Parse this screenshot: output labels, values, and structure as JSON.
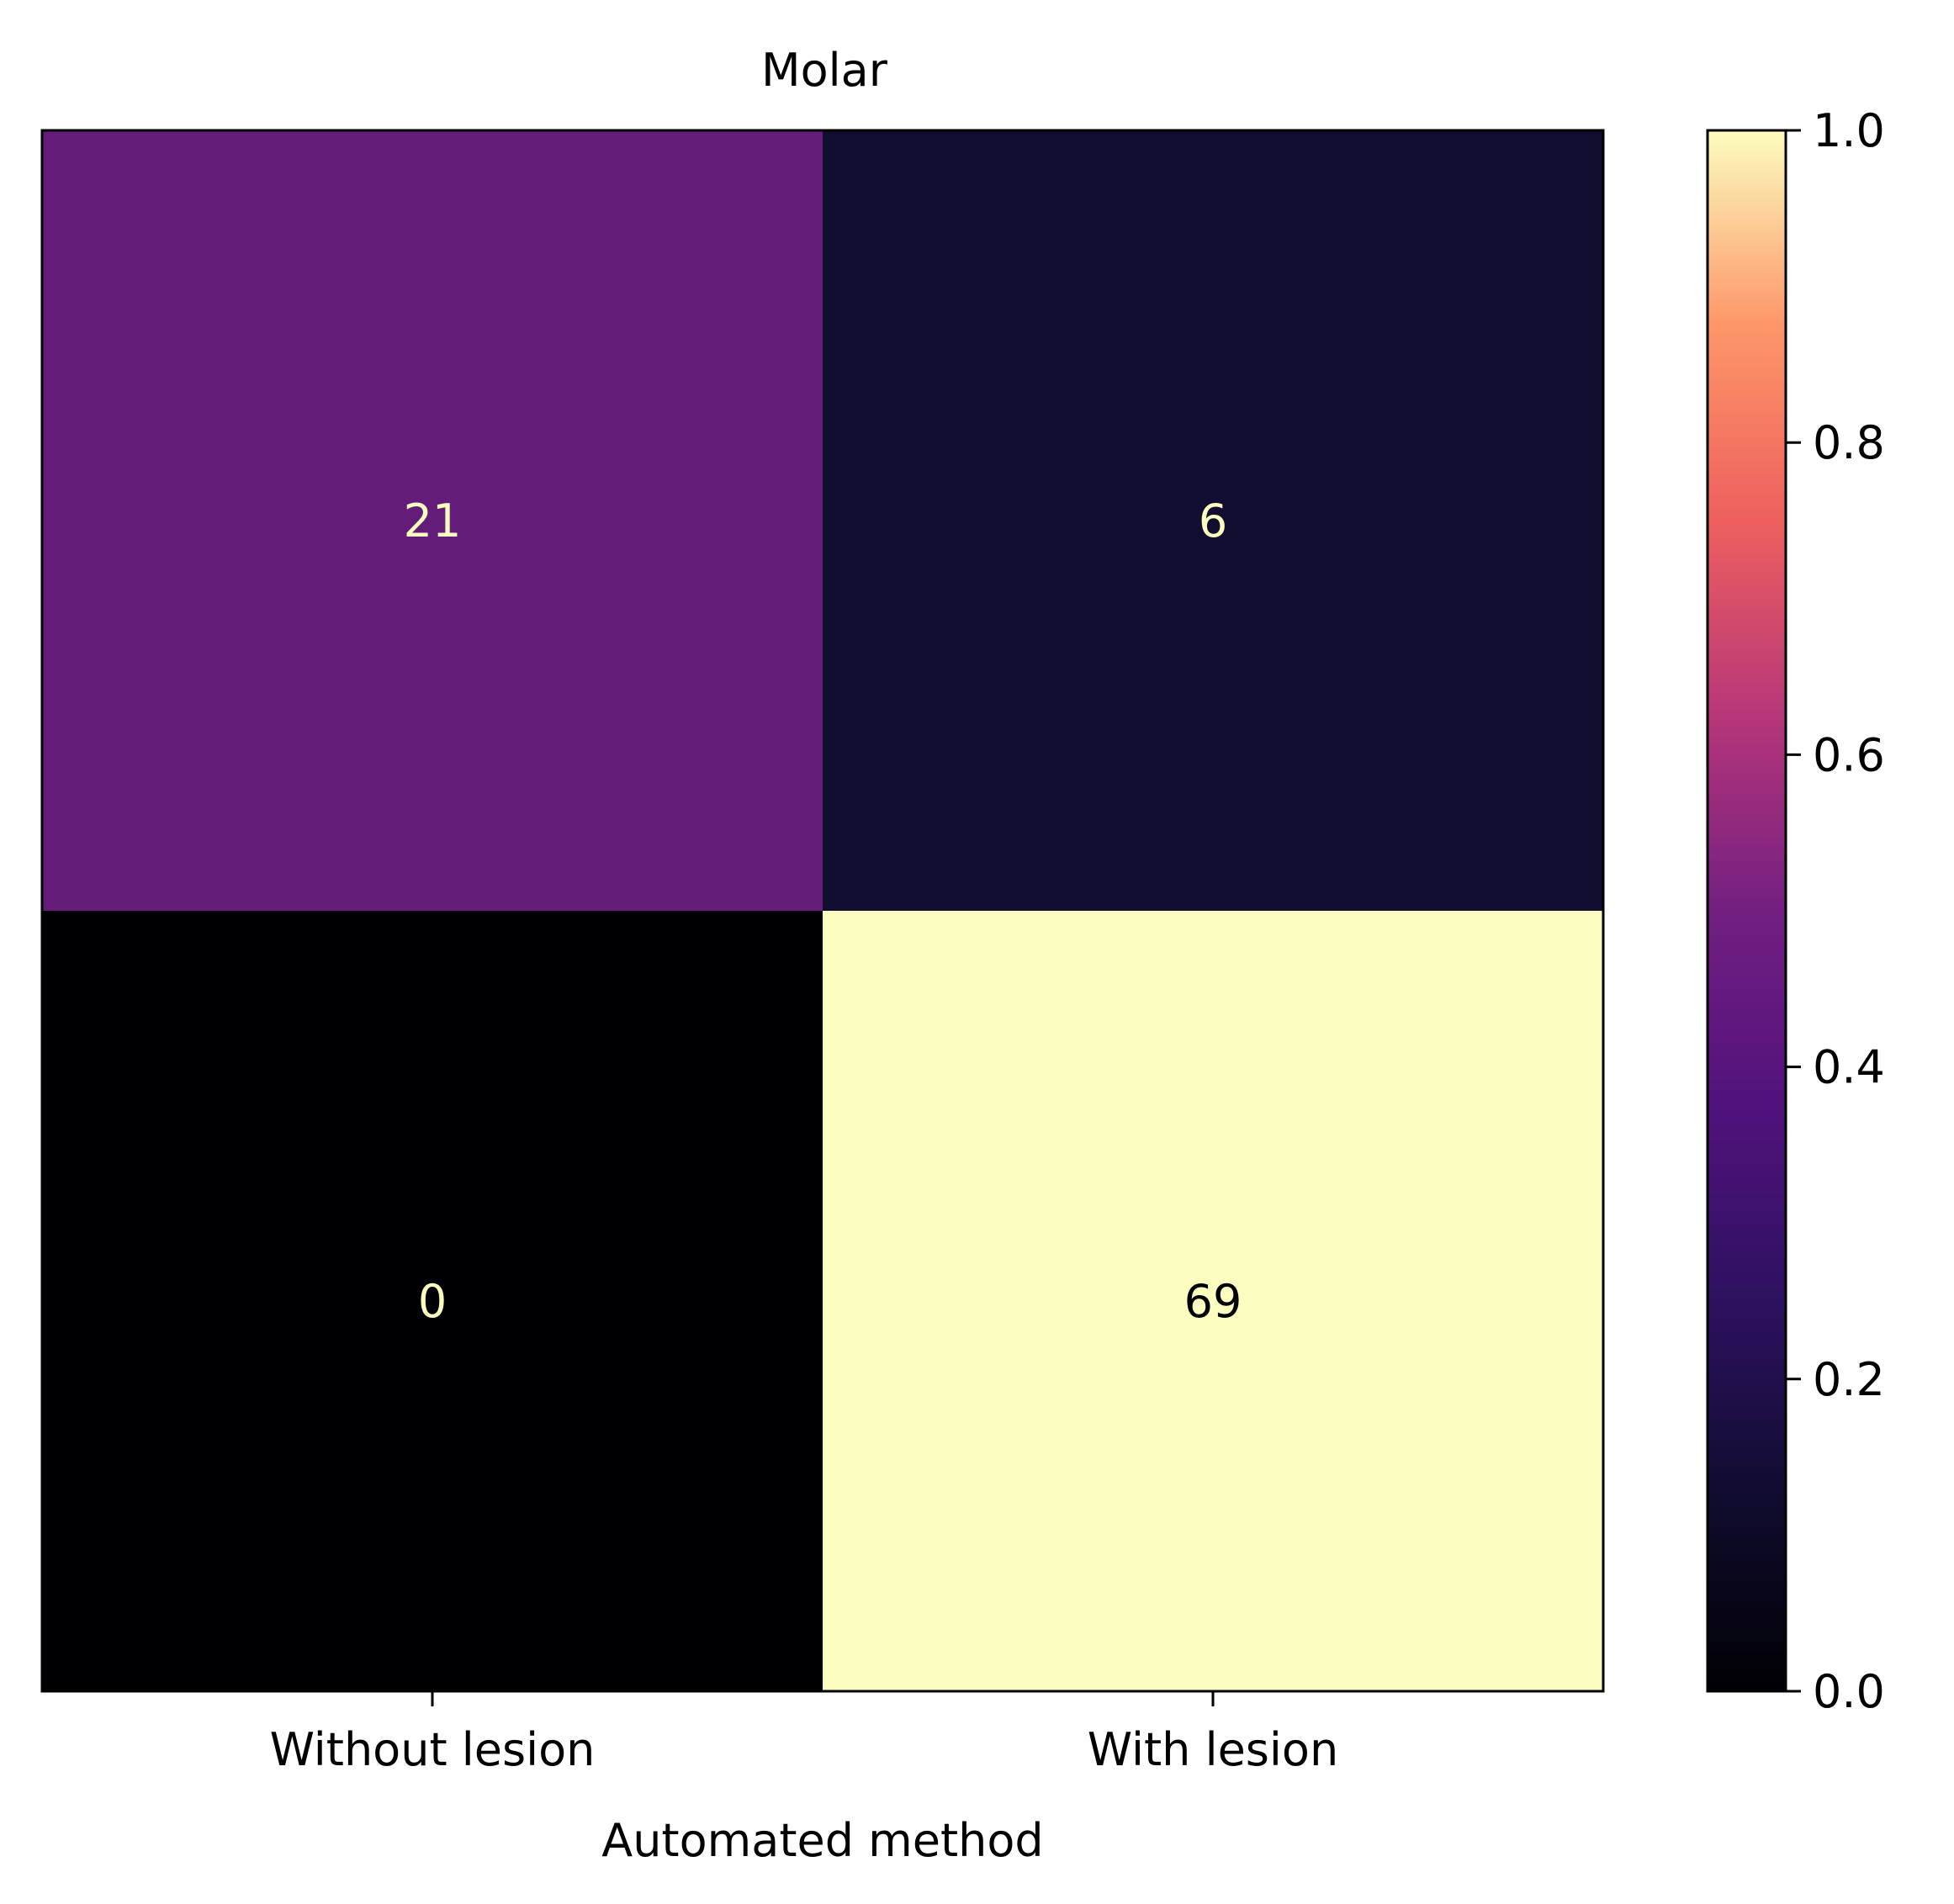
{
  "chart_data": {
    "type": "heatmap",
    "title": "Molar",
    "xlabel": "Automated method",
    "ylabel": "",
    "x_categories": [
      "Without lesion",
      "With lesion"
    ],
    "y_categories": [
      "",
      ""
    ],
    "values": [
      [
        21,
        6
      ],
      [
        0,
        69
      ]
    ],
    "normalized_values": [
      [
        0.304,
        0.087
      ],
      [
        0.0,
        1.0
      ]
    ],
    "colormap": "magma",
    "color_range": [
      0,
      1
    ],
    "colorbar": {
      "ticks": [
        "0.0",
        "0.2",
        "0.4",
        "0.6",
        "0.8",
        "1.0"
      ],
      "tick_values": [
        0,
        0.2,
        0.4,
        0.6,
        0.8,
        1.0
      ]
    },
    "cell_colors": [
      [
        "#641c7a",
        "#110e31"
      ],
      [
        "#000004",
        "#fbfcbf"
      ]
    ],
    "text_colors": {
      "on_dark": "#fcfdbf",
      "on_light": "#000000"
    },
    "grid": false
  }
}
